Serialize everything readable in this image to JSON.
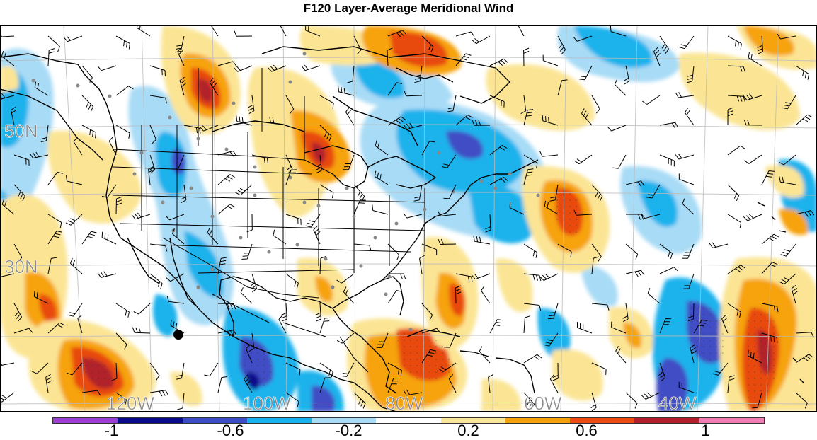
{
  "title": "F120 Layer-Average Meridional Wind",
  "lat_labels": [
    "50N",
    "30N"
  ],
  "lon_labels": [
    "120W",
    "100W",
    "80W",
    "60W",
    "40W"
  ],
  "colorbar": {
    "tick_labels": [
      "-1",
      "-0.6",
      "-0.2",
      "0.2",
      "0.6",
      "1"
    ],
    "colors": [
      "#9a3fd1",
      "#0a0a8c",
      "#3a4fc7",
      "#18b3ee",
      "#a9dcf7",
      "#ffffff",
      "#fbe79a",
      "#f4a20b",
      "#ec4a12",
      "#b3202a",
      "#f07db4"
    ]
  },
  "legend_colors": {
    "neg_strong": "#3f4dc4",
    "neg_mid": "#1cb2ec",
    "neg_weak": "#a8dbf6",
    "pos_weak": "#fbe594",
    "pos_mid": "#f6a30c",
    "pos_strong": "#e84a10",
    "pos_extreme": "#b1202a"
  }
}
